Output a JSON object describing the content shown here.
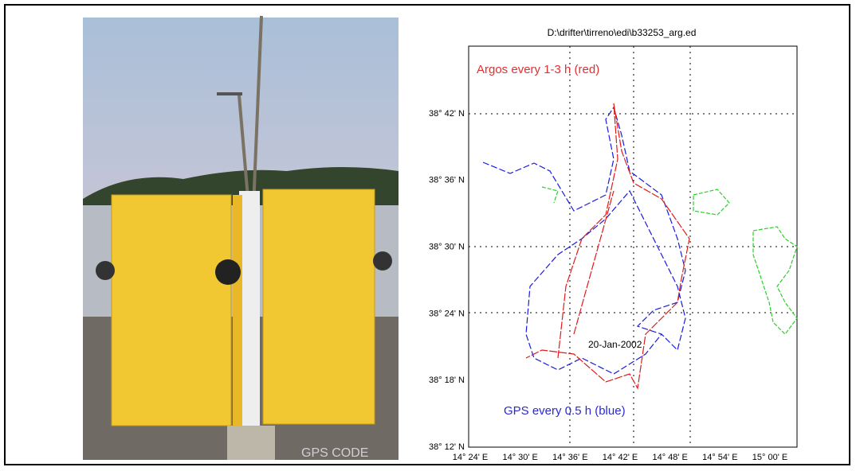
{
  "photo": {
    "caption": "GPS CODE"
  },
  "plot": {
    "title": "D:\\drifter\\tirreno\\edi\\b33253_arg.ed",
    "argos_note": "Argos every 1-3 h   (red)",
    "gps_note": "GPS every 0.5 h (blue)",
    "date_note": "20-Jan-2002",
    "yticks": [
      "38° 42' N",
      "38° 36' N",
      "38° 30' N",
      "38° 24' N",
      "38° 18' N",
      "38° 12' N"
    ],
    "xticks": [
      "14° 24' E",
      "14° 30' E",
      "14° 36' E",
      "14° 42' E",
      "14° 48' E",
      "14° 54' E",
      "15° 00' E"
    ]
  }
}
